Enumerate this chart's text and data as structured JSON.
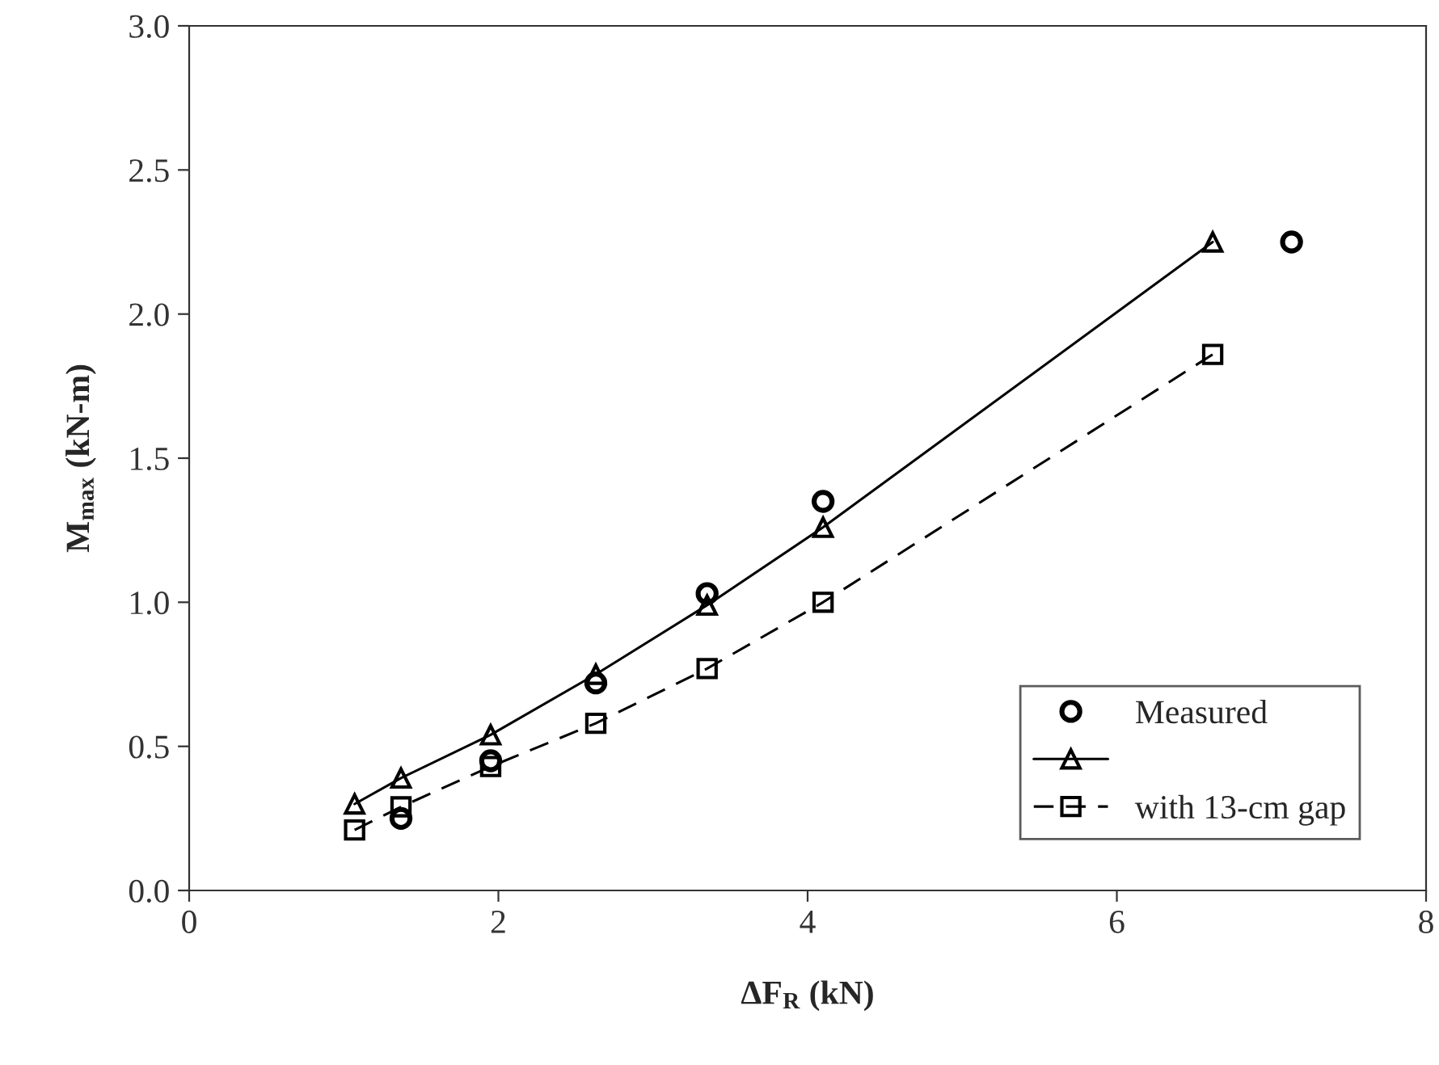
{
  "chart_data": {
    "type": "line",
    "xlabel": "ΔF$_{R}$ (kN)",
    "ylabel": "M$_{max}$ (kN-m)",
    "series": [
      {
        "name": "Measured",
        "type": "scatter",
        "color": "#000000",
        "marker": "circle",
        "x": [
          1.37,
          1.95,
          2.63,
          3.35,
          4.1,
          7.13
        ],
        "values": [
          0.25,
          0.45,
          0.72,
          1.03,
          1.35,
          2.25
        ]
      },
      {
        "color": "#000000",
        "marker": "triangle",
        "line_style": "solid",
        "x": [
          1.07,
          1.37,
          1.95,
          2.63,
          3.35,
          4.1,
          6.62
        ],
        "values": [
          0.3,
          0.39,
          0.54,
          0.75,
          0.99,
          1.26,
          2.25
        ]
      },
      {
        "name": "with 13-cm gap",
        "color": "#000000",
        "marker": "square",
        "line_style": "dashed",
        "x": [
          1.07,
          1.37,
          1.95,
          2.63,
          3.35,
          4.1,
          6.62
        ],
        "values": [
          0.21,
          0.29,
          0.43,
          0.58,
          0.77,
          1.0,
          1.86
        ]
      }
    ],
    "xlim": [
      0,
      8
    ],
    "xticks": [
      0,
      2,
      4,
      6,
      8
    ],
    "ylim": [
      0,
      3
    ],
    "yticks": [
      {
        "value": 0,
        "label": "0.0"
      },
      {
        "value": 0.5,
        "label": "0.5"
      },
      {
        "value": 1,
        "label": "1.0"
      },
      {
        "value": 1.5,
        "label": "1.5"
      },
      {
        "value": 2,
        "label": "2.0"
      },
      {
        "value": 2.5,
        "label": "2.5"
      },
      {
        "value": 3,
        "label": "3.0"
      }
    ],
    "grid": false,
    "legend": "bottom right"
  }
}
